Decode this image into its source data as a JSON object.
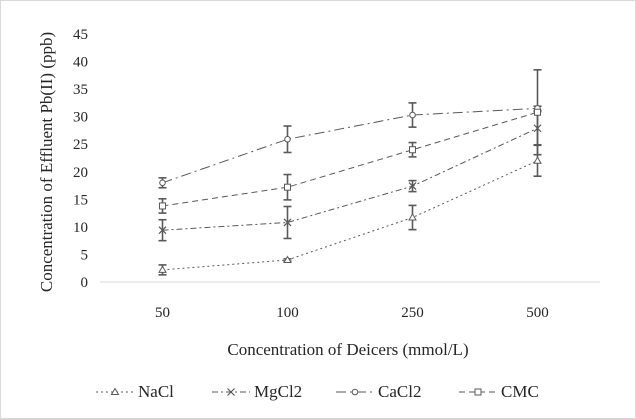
{
  "chart_data": {
    "type": "line",
    "title": "",
    "xlabel": "Concentration of Deicers (mmol/L)",
    "ylabel": "Concentration of Effluent Pb(II) (ppb)",
    "categories": [
      "50",
      "100",
      "250",
      "500"
    ],
    "ylim": [
      0,
      45
    ],
    "yticks": [
      0,
      5,
      10,
      15,
      20,
      25,
      30,
      35,
      40,
      45
    ],
    "grid": false,
    "legend_position": "bottom",
    "series": [
      {
        "name": "NaCl",
        "marker": "triangle",
        "dash": "dotted",
        "values": [
          2.2,
          4.0,
          11.7,
          22.0
        ],
        "errors": [
          0.9,
          0.2,
          2.2,
          2.8
        ]
      },
      {
        "name": "MgCl2",
        "marker": "x",
        "dash": "dash-dot",
        "values": [
          9.4,
          10.8,
          17.4,
          27.9
        ],
        "errors": [
          1.9,
          2.9,
          1.0,
          3.0
        ]
      },
      {
        "name": "CaCl2",
        "marker": "circle",
        "dash": "long-dash-dot",
        "values": [
          18.0,
          25.9,
          30.3,
          31.5
        ],
        "errors": [
          0.9,
          2.4,
          2.2,
          0.4
        ]
      },
      {
        "name": "CMC",
        "marker": "square",
        "dash": "dash",
        "values": [
          13.8,
          17.2,
          24.0,
          30.8
        ],
        "errors": [
          1.3,
          2.3,
          1.3,
          7.7
        ]
      }
    ]
  },
  "colors": {
    "series": "#595959",
    "axis": "#d9d9d9",
    "text": "#262626",
    "error_bar": "#595959"
  }
}
